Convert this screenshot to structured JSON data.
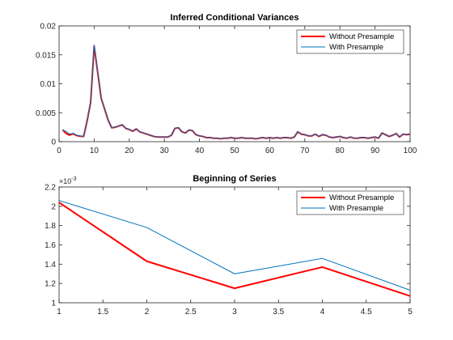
{
  "chart_data": [
    {
      "type": "line",
      "title": "Inferred Conditional Variances",
      "xlim": [
        0,
        100
      ],
      "ylim": [
        0,
        0.02
      ],
      "xticks": [
        0,
        10,
        20,
        30,
        40,
        50,
        60,
        70,
        80,
        90,
        100
      ],
      "yticks": [
        0,
        0.005,
        0.01,
        0.015,
        0.02
      ],
      "xtick_labels": [
        "0",
        "10",
        "20",
        "30",
        "40",
        "50",
        "60",
        "70",
        "80",
        "90",
        "100"
      ],
      "ytick_labels": [
        "0",
        "0.005",
        "0.01",
        "0.015",
        "0.02"
      ],
      "legend_position": "top-right",
      "x": [
        1,
        2,
        3,
        4,
        5,
        6,
        7,
        8,
        9,
        10,
        11,
        12,
        13,
        14,
        15,
        16,
        17,
        18,
        19,
        20,
        21,
        22,
        23,
        24,
        25,
        26,
        27,
        28,
        29,
        30,
        31,
        32,
        33,
        34,
        35,
        36,
        37,
        38,
        39,
        40,
        41,
        42,
        43,
        44,
        45,
        46,
        47,
        48,
        49,
        50,
        51,
        52,
        53,
        54,
        55,
        56,
        57,
        58,
        59,
        60,
        61,
        62,
        63,
        64,
        65,
        66,
        67,
        68,
        69,
        70,
        71,
        72,
        73,
        74,
        75,
        76,
        77,
        78,
        79,
        80,
        81,
        82,
        83,
        84,
        85,
        86,
        87,
        88,
        89,
        90,
        91,
        92,
        93,
        94,
        95,
        96,
        97,
        98,
        99,
        100
      ],
      "series": [
        {
          "name": "Without Presample",
          "color": "#ff0000",
          "values": [
            0.00205,
            0.00143,
            0.00115,
            0.00137,
            0.00107,
            0.00095,
            0.0009,
            0.0036,
            0.0068,
            0.0165,
            0.012,
            0.0075,
            0.0056,
            0.0037,
            0.0024,
            0.0025,
            0.0027,
            0.0029,
            0.0023,
            0.0021,
            0.0018,
            0.0022,
            0.0017,
            0.0015,
            0.0013,
            0.0011,
            0.0009,
            0.0008,
            0.0008,
            0.0008,
            0.0008,
            0.0011,
            0.0023,
            0.0024,
            0.0017,
            0.0015,
            0.002,
            0.0019,
            0.0012,
            0.001,
            0.0009,
            0.0007,
            0.0007,
            0.0006,
            0.0006,
            0.0005,
            0.0006,
            0.0006,
            0.0007,
            0.0006,
            0.0006,
            0.0007,
            0.0006,
            0.0006,
            0.0006,
            0.0005,
            0.0006,
            0.0007,
            0.0006,
            0.0007,
            0.0006,
            0.0007,
            0.0006,
            0.0007,
            0.0007,
            0.0006,
            0.0008,
            0.0017,
            0.0013,
            0.0012,
            0.001,
            0.001,
            0.0013,
            0.0009,
            0.0012,
            0.0011,
            0.0008,
            0.0007,
            0.0008,
            0.0009,
            0.0007,
            0.0006,
            0.0008,
            0.0006,
            0.0006,
            0.0007,
            0.0007,
            0.0006,
            0.0007,
            0.0008,
            0.0006,
            0.0015,
            0.0012,
            0.0009,
            0.0011,
            0.0014,
            0.0008,
            0.0013,
            0.0012,
            0.0013
          ]
        },
        {
          "name": "With Presample",
          "color": "#0072bd",
          "values": [
            0.00206,
            0.00178,
            0.00131,
            0.00146,
            0.00113,
            0.001,
            0.00093,
            0.0037,
            0.0069,
            0.0167,
            0.0121,
            0.0076,
            0.00565,
            0.00375,
            0.00243,
            0.00252,
            0.00272,
            0.00292,
            0.00232,
            0.00212,
            0.00182,
            0.00222,
            0.00172,
            0.00152,
            0.00132,
            0.00112,
            0.00092,
            0.00082,
            0.00082,
            0.00082,
            0.00082,
            0.00112,
            0.00232,
            0.00242,
            0.00172,
            0.00152,
            0.00202,
            0.00192,
            0.00122,
            0.00102,
            0.00092,
            0.00072,
            0.00072,
            0.00062,
            0.00062,
            0.00052,
            0.00062,
            0.00062,
            0.00072,
            0.00062,
            0.00062,
            0.00072,
            0.00062,
            0.00062,
            0.00062,
            0.00052,
            0.00062,
            0.00072,
            0.00062,
            0.00072,
            0.00062,
            0.00072,
            0.00062,
            0.00072,
            0.00072,
            0.00062,
            0.00082,
            0.00172,
            0.00132,
            0.00122,
            0.00102,
            0.00102,
            0.00132,
            0.00092,
            0.00122,
            0.00112,
            0.00082,
            0.00072,
            0.00082,
            0.00092,
            0.00072,
            0.00062,
            0.00082,
            0.00062,
            0.00062,
            0.00072,
            0.00072,
            0.00062,
            0.00072,
            0.00082,
            0.00062,
            0.00152,
            0.00122,
            0.00092,
            0.00112,
            0.00142,
            0.00082,
            0.00132,
            0.00122,
            0.00132
          ]
        }
      ]
    },
    {
      "type": "line",
      "title": "Beginning of Series",
      "xlim": [
        1,
        5
      ],
      "ylim": [
        1,
        2.2
      ],
      "y_exponent_label": "×10^-3",
      "xticks": [
        1,
        1.5,
        2,
        2.5,
        3,
        3.5,
        4,
        4.5,
        5
      ],
      "yticks": [
        1,
        1.2,
        1.4,
        1.6,
        1.8,
        2,
        2.2
      ],
      "xtick_labels": [
        "1",
        "1.5",
        "2",
        "2.5",
        "3",
        "3.5",
        "4",
        "4.5",
        "5"
      ],
      "ytick_labels": [
        "1",
        "1.2",
        "1.4",
        "1.6",
        "1.8",
        "2",
        "2.2"
      ],
      "legend_position": "top-right",
      "x": [
        1,
        2,
        3,
        4,
        5
      ],
      "series": [
        {
          "name": "Without Presample",
          "color": "#ff0000",
          "values": [
            2.04,
            1.43,
            1.15,
            1.37,
            1.07
          ]
        },
        {
          "name": "With Presample",
          "color": "#0072bd",
          "values": [
            2.06,
            1.78,
            1.3,
            1.46,
            1.13
          ]
        }
      ]
    }
  ]
}
